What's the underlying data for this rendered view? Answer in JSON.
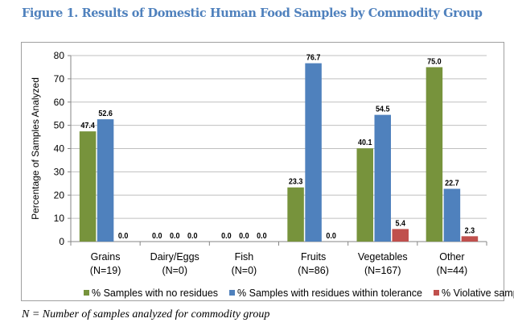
{
  "title": "Figure 1. Results of Domestic Human Food Samples by Commodity Group",
  "caption": "N = Number of samples analyzed for commodity group",
  "chart_data": {
    "type": "bar",
    "title": "",
    "ylabel": "Percentage of Samples Analyzed",
    "xlabel": "",
    "ylim": [
      0,
      80
    ],
    "yticks": [
      0,
      10,
      20,
      30,
      40,
      50,
      60,
      70,
      80
    ],
    "grid": true,
    "legend": "bottom",
    "categories": [
      {
        "name": "Grains",
        "n": "(N=19)"
      },
      {
        "name": "Dairy/Eggs",
        "n": "(N=0)"
      },
      {
        "name": "Fish",
        "n": "(N=0)"
      },
      {
        "name": "Fruits",
        "n": "(N=86)"
      },
      {
        "name": "Vegetables",
        "n": "(N=167)"
      },
      {
        "name": "Other",
        "n": "(N=44)"
      }
    ],
    "series": [
      {
        "name": "% Samples with no residues",
        "color": "#77933c",
        "values": [
          47.4,
          0.0,
          0.0,
          23.3,
          40.1,
          75.0
        ]
      },
      {
        "name": "% Samples with residues within tolerance",
        "color": "#4f81bd",
        "values": [
          52.6,
          0.0,
          0.0,
          76.7,
          54.5,
          22.7
        ]
      },
      {
        "name": "% Violative samples",
        "color": "#c0504d",
        "values": [
          0.0,
          0.0,
          0.0,
          0.0,
          5.4,
          2.3
        ]
      }
    ]
  }
}
